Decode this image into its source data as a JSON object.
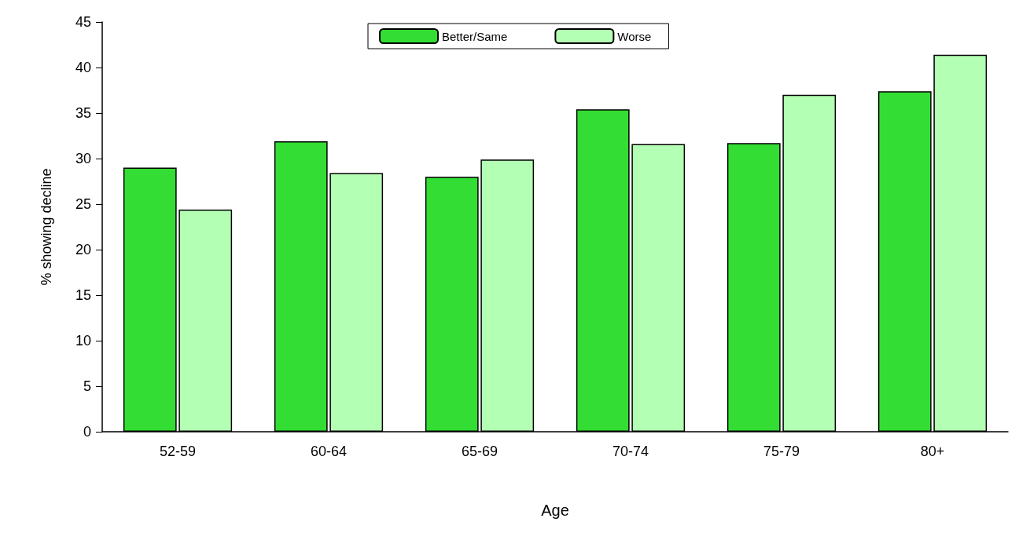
{
  "chart_data": {
    "type": "bar",
    "xlabel": "Age",
    "ylabel": "% showing decline",
    "categories": [
      "52-59",
      "60-64",
      "65-69",
      "70-74",
      "75-79",
      "80+"
    ],
    "series": [
      {
        "name": "Better/Same",
        "color": "#33dd33",
        "values": [
          29.0,
          31.9,
          28.0,
          35.4,
          31.7,
          37.4
        ]
      },
      {
        "name": "Worse",
        "color": "#b3ffb3",
        "values": [
          24.4,
          28.4,
          29.9,
          31.6,
          37.0,
          41.4
        ]
      }
    ],
    "ylim": [
      0,
      45
    ],
    "yticks": [
      0,
      5,
      10,
      15,
      20,
      25,
      30,
      35,
      40,
      45
    ],
    "grid": false,
    "legend": "top"
  }
}
